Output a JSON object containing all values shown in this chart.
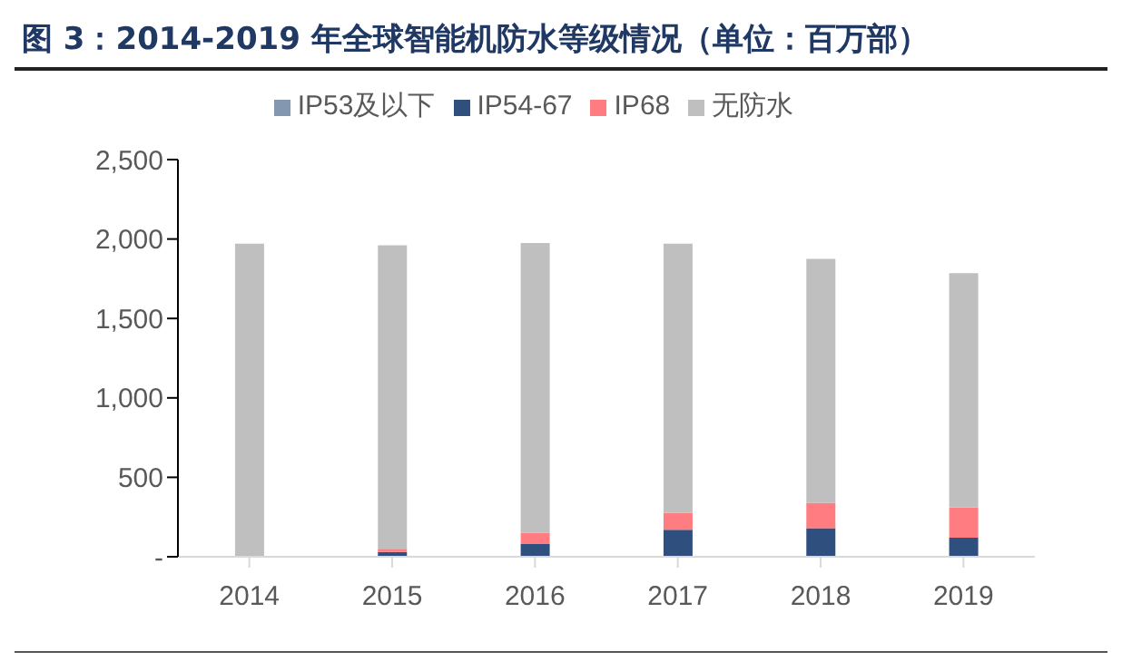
{
  "chart_data": {
    "type": "bar",
    "title": "图 3：2014-2019 年全球智能机防水等级情况（单位：百万部）",
    "categories": [
      "2014",
      "2015",
      "2016",
      "2017",
      "2018",
      "2019"
    ],
    "stacked": true,
    "legend": "top",
    "series": [
      {
        "name": "IP53及以下",
        "color": "#8497b0",
        "values": [
          0,
          0,
          0,
          0,
          0,
          0
        ]
      },
      {
        "name": "IP54-67",
        "color": "#2f4f7f",
        "values": [
          0,
          30,
          80,
          170,
          180,
          120
        ]
      },
      {
        "name": "IP68",
        "color": "#ff7c80",
        "values": [
          0,
          20,
          70,
          105,
          160,
          190
        ]
      },
      {
        "name": "无防水",
        "color": "#bfbfbf",
        "values": [
          1970,
          1910,
          1825,
          1695,
          1535,
          1475
        ]
      }
    ],
    "ylim": [
      0,
      2500
    ],
    "yticks": [
      {
        "value": 0,
        "label": "-"
      },
      {
        "value": 500,
        "label": "500"
      },
      {
        "value": 1000,
        "label": "1,000"
      },
      {
        "value": 1500,
        "label": "1,500"
      },
      {
        "value": 2000,
        "label": "2,000"
      },
      {
        "value": 2500,
        "label": "2,500"
      }
    ],
    "grid": false
  }
}
